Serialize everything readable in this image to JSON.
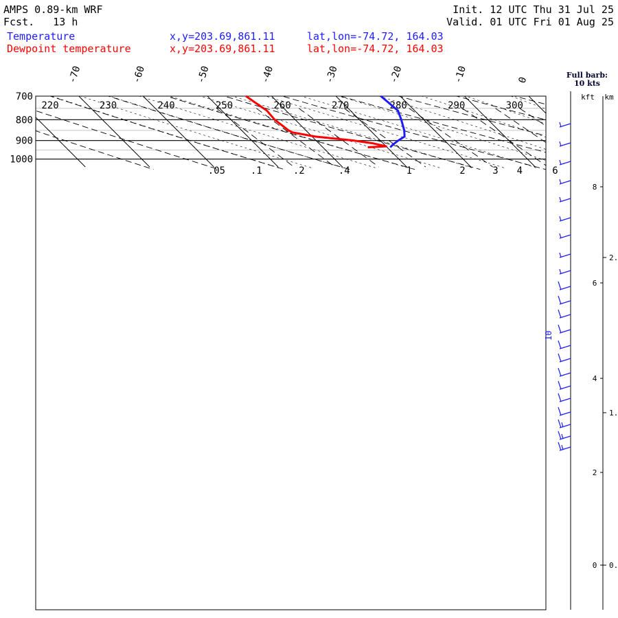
{
  "header": {
    "model": "AMPS 0.89-km WRF",
    "forecast": "Fcst.   13 h",
    "init": "Init. 12 UTC Thu 31 Jul 25",
    "valid": "Valid. 01 UTC Fri 01 Aug 25"
  },
  "legend": [
    {
      "name": "Temperature",
      "xy": "x,y=203.69,861.11",
      "latlon": "lat,lon=-74.72, 164.03",
      "color": "#1c1cff"
    },
    {
      "name": "Dewpoint temperature",
      "xy": "x,y=203.69,861.11",
      "latlon": "lat,lon=-74.72, 164.03",
      "color": "#ff0000"
    }
  ],
  "barb_note": {
    "line1": "Full barb:",
    "line2": "10 kts"
  },
  "km_header": {
    "kft": "kft",
    "km": "km"
  },
  "chart_data": {
    "type": "skew-t",
    "y_axis": {
      "label": "",
      "scale": "log-pressure",
      "range_hpa": [
        1040,
        700
      ],
      "ticks": [
        700,
        800,
        900,
        1000
      ]
    },
    "temperature_ticks": [
      "-70",
      "-60",
      "-50",
      "-40",
      "-30",
      "-20",
      "-10",
      "0"
    ],
    "theta_labels": [
      "220",
      "230",
      "240",
      "250",
      "260",
      "270",
      "280",
      "290",
      "300"
    ],
    "mixing_ratio_labels": [
      ".05",
      ".1",
      ".2",
      ".4",
      "1",
      "2",
      "3",
      "4",
      "6"
    ],
    "right_axis": {
      "kft_ticks": [
        "8",
        "6",
        "4",
        "2",
        "0"
      ],
      "km_ticks": [
        "2.",
        "1.",
        "0."
      ]
    },
    "wind_label": "10",
    "series": [
      {
        "name": "Temperature",
        "color": "#1c1cff",
        "points": [
          [
            700,
            -23.0
          ],
          [
            760,
            -22.6
          ],
          [
            800,
            -23.5
          ],
          [
            850,
            -24.7
          ],
          [
            880,
            -25.6
          ],
          [
            900,
            -27.2
          ],
          [
            920,
            -28.6
          ],
          [
            935,
            -29.5
          ]
        ]
      },
      {
        "name": "Dewpoint temperature",
        "color": "#ff0000",
        "points": [
          [
            700,
            -44.0
          ],
          [
            760,
            -43.0
          ],
          [
            800,
            -43.2
          ],
          [
            850,
            -42.7
          ],
          [
            860,
            -42.4
          ],
          [
            880,
            -39.5
          ],
          [
            900,
            -34.2
          ],
          [
            915,
            -31.5
          ],
          [
            930,
            -30.0
          ],
          [
            935,
            -33.0
          ]
        ]
      }
    ]
  }
}
